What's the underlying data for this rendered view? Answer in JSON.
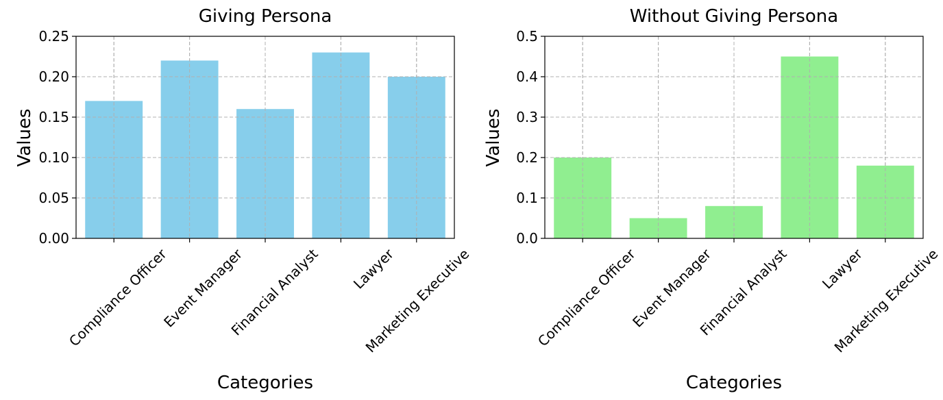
{
  "colors": {
    "left_bar": "#87CEEB",
    "right_bar": "#90EE90"
  },
  "chart_data": [
    {
      "type": "bar",
      "title": "Giving Persona",
      "xlabel": "Categories",
      "ylabel": "Values",
      "categories": [
        "Compliance Officer",
        "Event Manager",
        "Financial Analyst",
        "Lawyer",
        "Marketing Executive"
      ],
      "values": [
        0.17,
        0.22,
        0.16,
        0.23,
        0.2
      ],
      "ylim": [
        0,
        0.25
      ],
      "yticks": [
        "0.00",
        "0.05",
        "0.10",
        "0.15",
        "0.20",
        "0.25"
      ],
      "grid": true,
      "color": "#87CEEB"
    },
    {
      "type": "bar",
      "title": "Without Giving Persona",
      "xlabel": "Categories",
      "ylabel": "Values",
      "categories": [
        "Compliance Officer",
        "Event Manager",
        "Financial Analyst",
        "Lawyer",
        "Marketing Executive"
      ],
      "values": [
        0.2,
        0.05,
        0.08,
        0.45,
        0.18
      ],
      "ylim": [
        0,
        0.5
      ],
      "yticks": [
        "0.0",
        "0.1",
        "0.2",
        "0.3",
        "0.4",
        "0.5"
      ],
      "grid": true,
      "color": "#90EE90"
    }
  ]
}
